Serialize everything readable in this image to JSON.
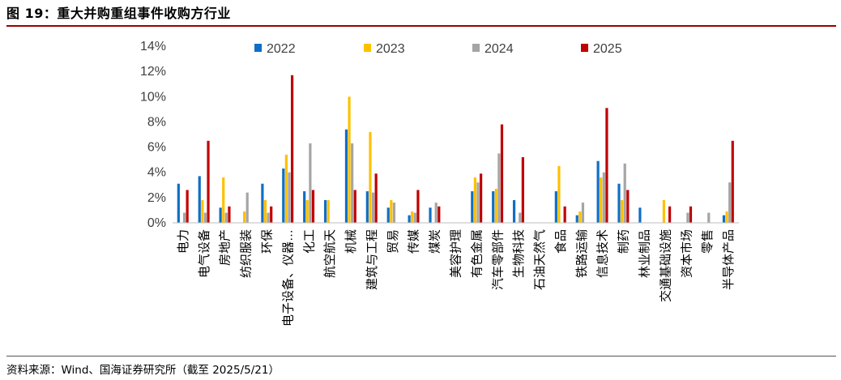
{
  "figure_title": "图 19：重大并购重组事件收购方行业",
  "source_note": "资料来源：Wind、国海证券研究所（截至 2025/5/21）",
  "colors": {
    "2022": "#0f6fc6",
    "2023": "#ffc000",
    "2024": "#a5a5a5",
    "2025": "#c00000",
    "title_rule": "#9b0000"
  },
  "chart_data": {
    "type": "bar",
    "title": "",
    "xlabel": "",
    "ylabel": "",
    "ylim": [
      0,
      14
    ],
    "yticks": [
      "0%",
      "2%",
      "4%",
      "6%",
      "8%",
      "10%",
      "12%",
      "14%"
    ],
    "legend_position": "top",
    "grid": false,
    "categories": [
      "电力",
      "电气设备",
      "房地产",
      "纺织服装",
      "环保",
      "电子设备、仪器…",
      "化工",
      "航空航天",
      "机械",
      "建筑与工程",
      "贸易",
      "传媒",
      "煤炭",
      "美容护理",
      "有色金属",
      "汽车零部件",
      "生物科技",
      "石油天然气",
      "食品",
      "铁路运输",
      "信息技术",
      "制药",
      "林业制品",
      "交通基础设施",
      "资本市场",
      "零售",
      "半导体产品"
    ],
    "series": [
      {
        "name": "2022",
        "values": [
          3.1,
          3.7,
          1.2,
          0.0,
          3.1,
          4.3,
          2.5,
          1.8,
          7.4,
          2.5,
          1.2,
          0.6,
          1.2,
          0.0,
          2.5,
          2.5,
          1.8,
          0.0,
          2.5,
          0.6,
          4.9,
          3.1,
          1.2,
          0.0,
          0.0,
          0.0,
          0.6
        ]
      },
      {
        "name": "2023",
        "values": [
          0.0,
          1.8,
          3.6,
          0.9,
          1.8,
          5.4,
          1.8,
          1.8,
          10.0,
          7.2,
          1.8,
          0.9,
          0.0,
          0.0,
          3.6,
          2.7,
          0.0,
          0.0,
          4.5,
          0.9,
          3.6,
          1.8,
          0.0,
          1.8,
          0.0,
          0.0,
          0.9
        ]
      },
      {
        "name": "2024",
        "values": [
          0.8,
          0.8,
          0.8,
          2.4,
          0.8,
          4.0,
          6.3,
          0.0,
          6.3,
          2.4,
          1.6,
          0.8,
          1.6,
          0.0,
          3.2,
          5.5,
          0.8,
          0.0,
          0.0,
          1.6,
          4.0,
          4.7,
          0.0,
          0.0,
          0.8,
          0.8,
          3.2
        ]
      },
      {
        "name": "2025",
        "values": [
          2.6,
          6.5,
          1.3,
          0.0,
          1.3,
          11.7,
          2.6,
          0.0,
          2.6,
          3.9,
          0.0,
          2.6,
          1.3,
          0.0,
          3.9,
          7.8,
          5.2,
          0.0,
          1.3,
          0.0,
          9.1,
          2.6,
          0.0,
          1.3,
          1.3,
          0.0,
          6.5
        ]
      }
    ]
  }
}
